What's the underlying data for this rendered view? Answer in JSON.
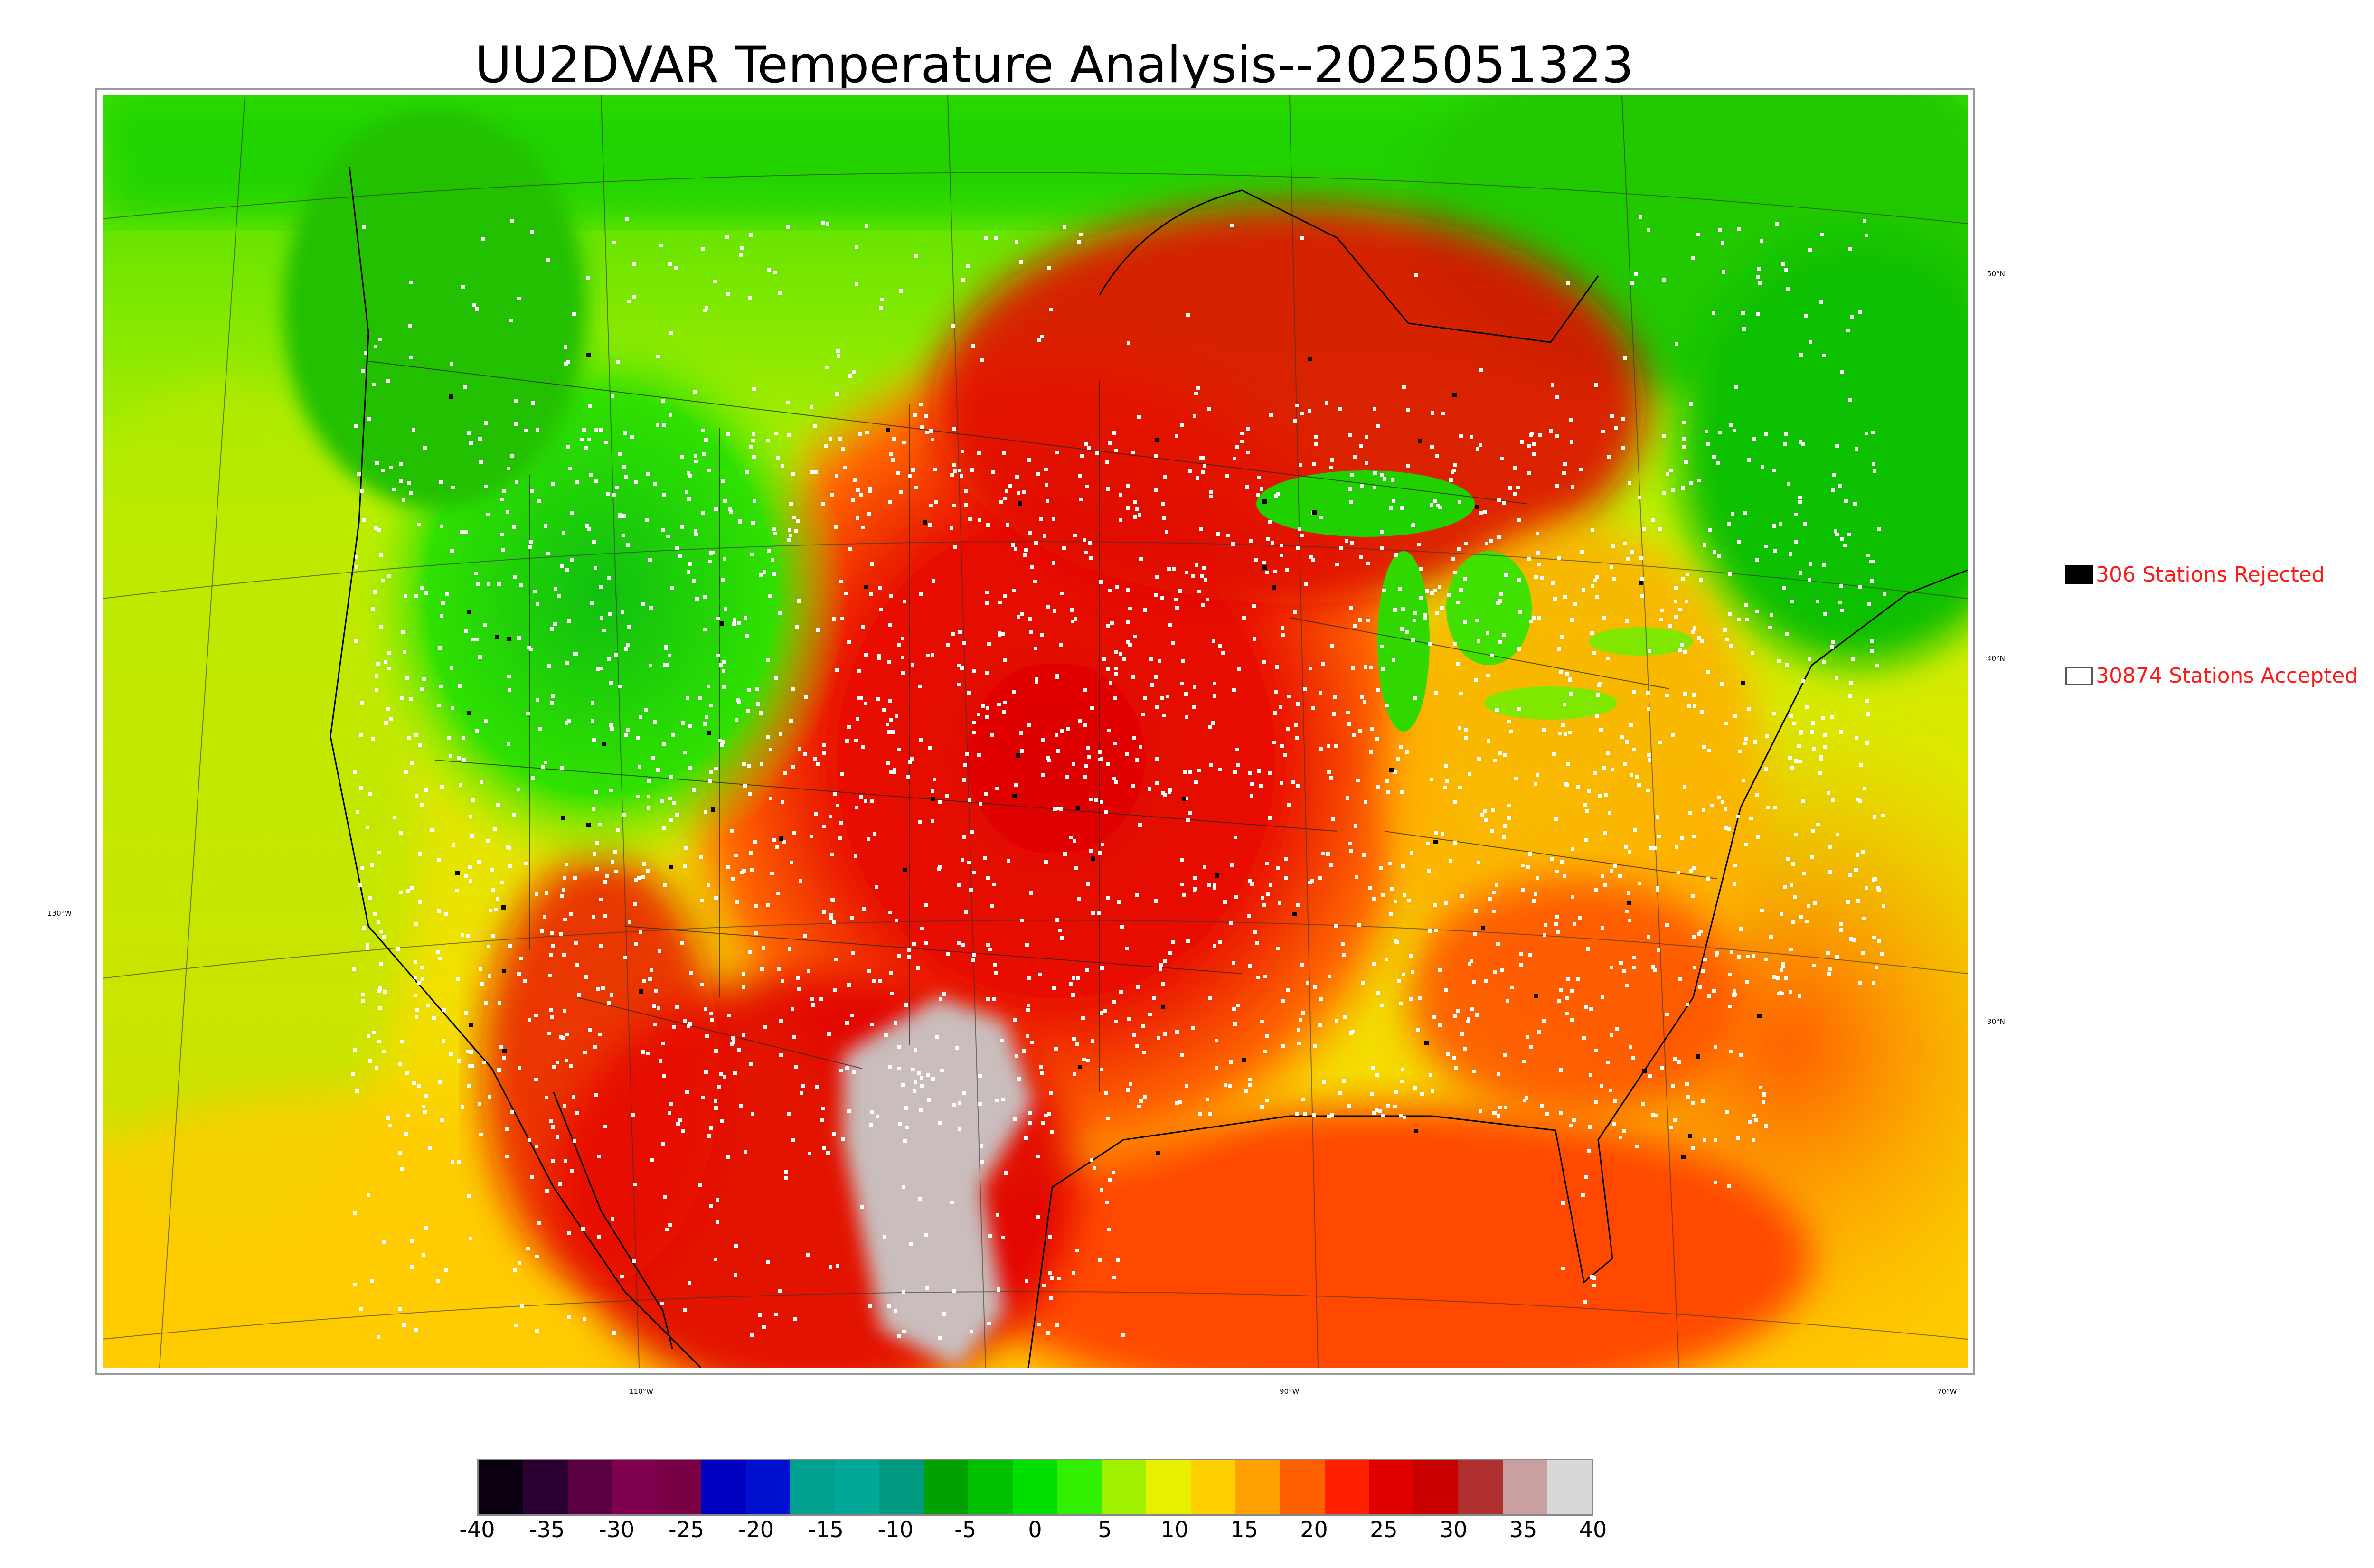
{
  "title": "UU2DVAR Temperature Analysis--2025051323",
  "map": {
    "lon_labels": [
      "130°W",
      "110°W",
      "90°W",
      "70°W"
    ],
    "lat_labels": [
      "50°N",
      "40°N",
      "30°N"
    ]
  },
  "legend": {
    "rejected_label": "306 Stations Rejected",
    "accepted_label": "30874 Stations Accepted",
    "rejected_color": "#000000",
    "accepted_color": "#ffffff",
    "text_color": "#ff1a1a"
  },
  "colorbar": {
    "ticks": [
      "-40",
      "-35",
      "-30",
      "-25",
      "-20",
      "-15",
      "-10",
      "-5",
      "0",
      "5",
      "10",
      "15",
      "20",
      "25",
      "30",
      "35",
      "40"
    ],
    "range": [
      -40,
      40
    ],
    "colors": [
      "#0a0012",
      "#2a0030",
      "#5a0040",
      "#800050",
      "#7a0045",
      "#0000c0",
      "#0010d0",
      "#00a090",
      "#00a898",
      "#009a80",
      "#00a000",
      "#00c000",
      "#00e000",
      "#30f000",
      "#a0f000",
      "#e8f000",
      "#ffd000",
      "#ffa000",
      "#ff6000",
      "#ff2000",
      "#e00000",
      "#c80000",
      "#b03030",
      "#c8a0a0",
      "#d8d8d8"
    ]
  }
}
